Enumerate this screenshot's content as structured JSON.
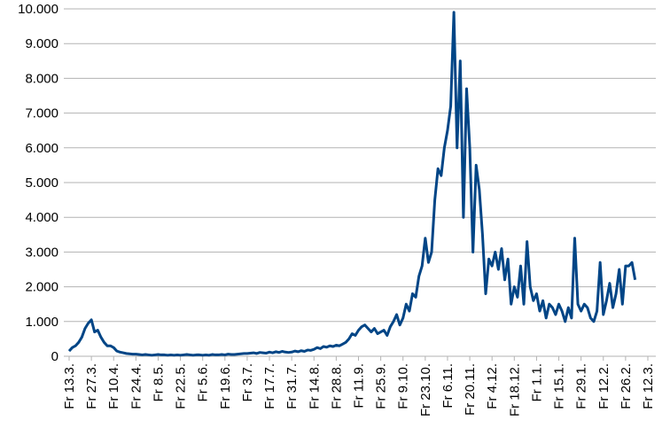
{
  "chart_data": {
    "type": "line",
    "categories": [
      "Fr 13.3.",
      null,
      null,
      null,
      null,
      null,
      null,
      "Fr 27.3.",
      null,
      null,
      null,
      null,
      null,
      null,
      "Fr 10.4.",
      null,
      null,
      null,
      null,
      null,
      null,
      "Fr 24.4.",
      null,
      null,
      null,
      null,
      null,
      null,
      "Fr 8.5.",
      null,
      null,
      null,
      null,
      null,
      null,
      "Fr 22.5.",
      null,
      null,
      null,
      null,
      null,
      null,
      "Fr 5.6.",
      null,
      null,
      null,
      null,
      null,
      null,
      "Fr 19.6.",
      null,
      null,
      null,
      null,
      null,
      null,
      "Fr 3.7.",
      null,
      null,
      null,
      null,
      null,
      null,
      "Fr 17.7.",
      null,
      null,
      null,
      null,
      null,
      null,
      "Fr 31.7.",
      null,
      null,
      null,
      null,
      null,
      null,
      "Fr 14.8.",
      null,
      null,
      null,
      null,
      null,
      null,
      "Fr 28.8.",
      null,
      null,
      null,
      null,
      null,
      null,
      "Fr 11.9.",
      null,
      null,
      null,
      null,
      null,
      null,
      "Fr 25.9.",
      null,
      null,
      null,
      null,
      null,
      null,
      "Fr 9.10.",
      null,
      null,
      null,
      null,
      null,
      null,
      "Fr 23.10.",
      null,
      null,
      null,
      null,
      null,
      null,
      "Fr 6.11.",
      null,
      null,
      null,
      null,
      null,
      null,
      "Fr 20.11.",
      null,
      null,
      null,
      null,
      null,
      null,
      "Fr 4.12.",
      null,
      null,
      null,
      null,
      null,
      null,
      "Fr 18.12.",
      null,
      null,
      null,
      null,
      null,
      null,
      "Fr 1.1.",
      null,
      null,
      null,
      null,
      null,
      null,
      "Fr 15.1.",
      null,
      null,
      null,
      null,
      null,
      null,
      "Fr 29.1.",
      null,
      null,
      null,
      null,
      null,
      null,
      "Fr 12.2.",
      null,
      null,
      null,
      null,
      null,
      null,
      "Fr 26.2.",
      null,
      null,
      null,
      null,
      null,
      null,
      "Fr 12.3."
    ],
    "series": [
      {
        "color": "#004586",
        "values": [
          150,
          250,
          300,
          400,
          550,
          800,
          950,
          1050,
          700,
          750,
          550,
          400,
          300,
          300,
          250,
          150,
          120,
          100,
          80,
          70,
          60,
          60,
          50,
          40,
          50,
          40,
          30,
          40,
          50,
          40,
          40,
          30,
          40,
          30,
          40,
          30,
          40,
          50,
          40,
          30,
          40,
          40,
          30,
          40,
          30,
          50,
          40,
          40,
          50,
          40,
          60,
          50,
          50,
          60,
          70,
          80,
          80,
          90,
          100,
          80,
          110,
          100,
          90,
          120,
          100,
          130,
          110,
          140,
          120,
          110,
          120,
          150,
          130,
          160,
          140,
          180,
          170,
          200,
          250,
          220,
          280,
          260,
          300,
          280,
          320,
          300,
          350,
          400,
          500,
          650,
          600,
          750,
          850,
          900,
          800,
          700,
          800,
          650,
          700,
          750,
          600,
          850,
          1000,
          1200,
          900,
          1100,
          1500,
          1300,
          1800,
          1700,
          2300,
          2600,
          3400,
          2700,
          3000,
          4500,
          5400,
          5200,
          6000,
          6500,
          7200,
          9900,
          6000,
          8500,
          4000,
          7700,
          6000,
          3000,
          5500,
          4800,
          3500,
          1800,
          2800,
          2600,
          3000,
          2500,
          3100,
          2200,
          2800,
          1500,
          2000,
          1700,
          2600,
          1500,
          3300,
          2000,
          1600,
          1800,
          1300,
          1600,
          1100,
          1500,
          1400,
          1200,
          1500,
          1300,
          1000,
          1400,
          1100,
          3400,
          1500,
          1300,
          1500,
          1400,
          1100,
          1000,
          1300,
          2700,
          1200,
          1600,
          2100,
          1400,
          1800,
          2500,
          1500,
          2600,
          2600,
          2700,
          2200,
          null,
          null,
          null,
          null
        ]
      }
    ],
    "ylim": [
      0,
      10000
    ],
    "yticks": [
      0,
      {
        "value": 1000,
        "label": "1.000"
      },
      {
        "value": 2000,
        "label": "2.000"
      },
      {
        "value": 3000,
        "label": "3.000"
      },
      {
        "value": 4000,
        "label": "4.000"
      },
      {
        "value": 5000,
        "label": "5.000"
      },
      {
        "value": 6000,
        "label": "6.000"
      },
      {
        "value": 7000,
        "label": "7.000"
      },
      {
        "value": 8000,
        "label": "8.000"
      },
      {
        "value": 9000,
        "label": "9.000"
      },
      {
        "value": 10000,
        "label": "10.000"
      }
    ],
    "grid": true
  }
}
